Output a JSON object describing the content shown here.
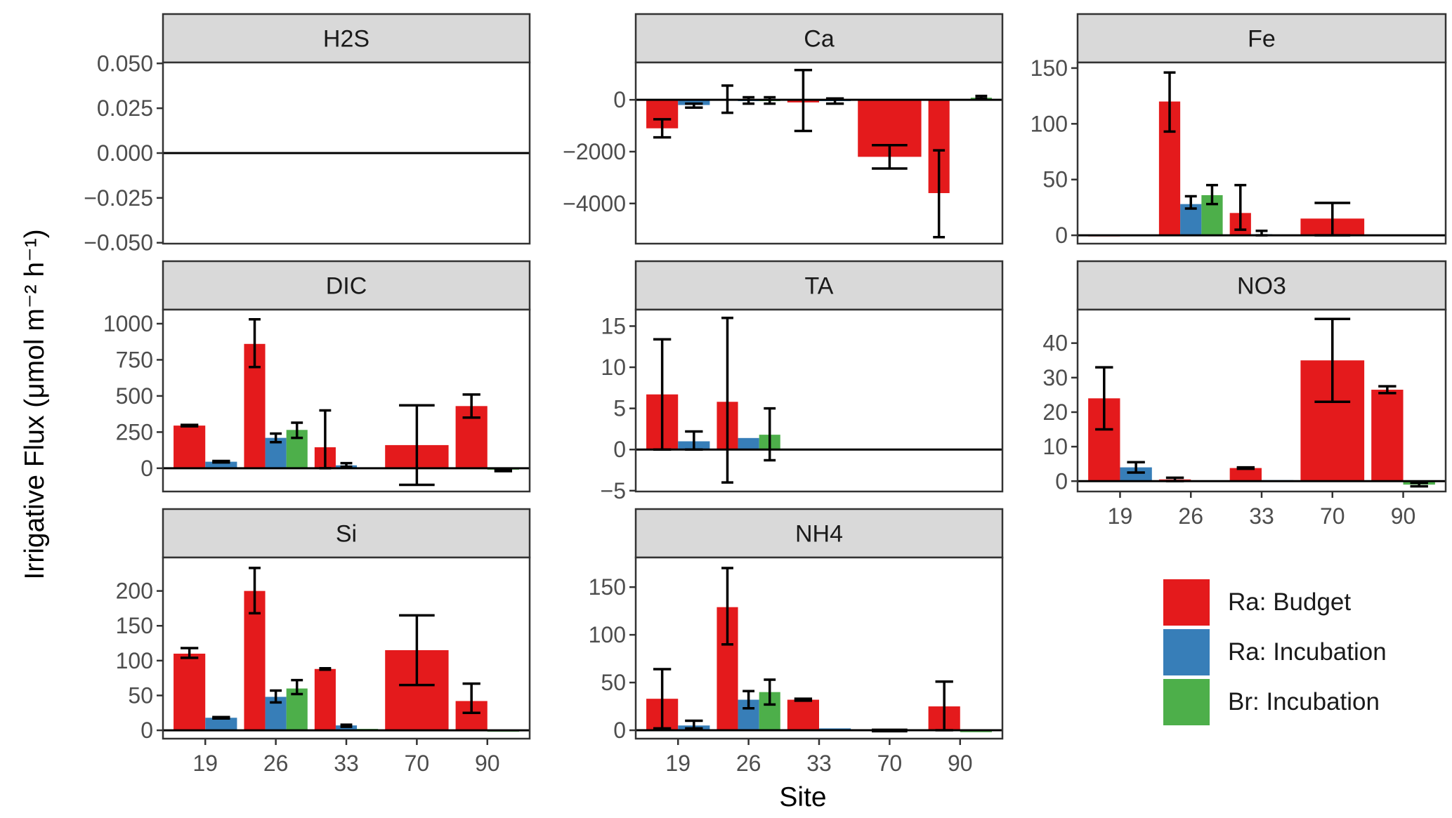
{
  "chart_data": {
    "type": "bar",
    "layout": "faceted 3x3 grid, free y scales",
    "ylabel": "Irrigative Flux (μmol m⁻² h⁻¹)",
    "xlabel": "Site",
    "categories": [
      "19",
      "26",
      "33",
      "70",
      "90"
    ],
    "legend": {
      "placement": "bottom-right",
      "entries": [
        {
          "name": "Ra: Budget",
          "color": "#E41A1C"
        },
        {
          "name": "Ra: Incubation",
          "color": "#377EB8"
        },
        {
          "name": "Br: Incubation",
          "color": "#4DAF4A"
        }
      ]
    },
    "panels": [
      {
        "title": "H2S",
        "ylim": [
          -0.0505,
          0.0505
        ],
        "ticks": [
          0.05,
          0.025,
          0,
          -0.025,
          -0.05
        ],
        "tick_labels": [
          "0.050",
          "0.025",
          "0.000",
          "−0.025",
          "−0.050"
        ],
        "show_x": false,
        "series": [
          [
            0,
            0,
            0,
            0,
            0
          ],
          [
            null,
            null,
            null,
            null,
            null
          ],
          [
            null,
            null,
            null,
            null,
            null
          ]
        ],
        "errors": [
          [
            null,
            null,
            null,
            null,
            null
          ],
          [
            null,
            null,
            null,
            null,
            null
          ],
          [
            null,
            null,
            null,
            null,
            null
          ]
        ]
      },
      {
        "title": "Ca",
        "ylim": [
          -5550,
          1440
        ],
        "ticks": [
          0,
          -2000,
          -4000
        ],
        "tick_labels": [
          "0",
          "−2000",
          "−4000"
        ],
        "show_x": false,
        "series": [
          [
            -1100,
            0,
            -100,
            -2200,
            -3600
          ],
          [
            -200,
            -50,
            -50,
            null,
            0
          ],
          [
            null,
            -50,
            null,
            null,
            80
          ]
        ],
        "errors": [
          [
            [
              -1450,
              -750
            ],
            [
              -500,
              550
            ],
            [
              -1200,
              1150
            ],
            [
              -2650,
              -1750
            ],
            [
              -5300,
              -1950
            ]
          ],
          [
            [
              -300,
              -150
            ],
            [
              -150,
              100
            ],
            [
              -150,
              50
            ],
            null,
            null
          ],
          [
            null,
            [
              -150,
              100
            ],
            null,
            null,
            [
              50,
              150
            ]
          ]
        ]
      },
      {
        "title": "Fe",
        "ylim": [
          -7.5,
          155
        ],
        "ticks": [
          0,
          50,
          100,
          150
        ],
        "tick_labels": [
          "0",
          "50",
          "100",
          "150"
        ],
        "show_x": false,
        "series": [
          [
            -1,
            120,
            20,
            15,
            0
          ],
          [
            0,
            28,
            1,
            null,
            0
          ],
          [
            null,
            36,
            0.5,
            null,
            null
          ]
        ],
        "errors": [
          [
            null,
            [
              93,
              146
            ],
            [
              5,
              45
            ],
            [
              0,
              29
            ],
            null
          ],
          [
            null,
            [
              24,
              35
            ],
            [
              0,
              4
            ],
            null,
            null
          ],
          [
            null,
            [
              28,
              45
            ],
            null,
            null,
            null
          ]
        ]
      },
      {
        "title": "DIC",
        "ylim": [
          -161,
          1097
        ],
        "ticks": [
          0,
          250,
          500,
          750,
          1000
        ],
        "tick_labels": [
          "0",
          "250",
          "500",
          "750",
          "1000"
        ],
        "show_x": false,
        "series": [
          [
            295,
            860,
            145,
            160,
            430
          ],
          [
            45,
            210,
            20,
            null,
            null
          ],
          [
            null,
            265,
            5,
            null,
            -10
          ]
        ],
        "errors": [
          [
            [
              290,
              300
            ],
            [
              700,
              1030
            ],
            [
              0,
              400
            ],
            [
              -115,
              435
            ],
            [
              350,
              510
            ]
          ],
          [
            [
              40,
              50
            ],
            [
              180,
              240
            ],
            [
              10,
              35
            ],
            null,
            null
          ],
          [
            null,
            [
              210,
              315
            ],
            null,
            null,
            [
              -20,
              -5
            ]
          ]
        ]
      },
      {
        "title": "TA",
        "ylim": [
          -5.1,
          17
        ],
        "ticks": [
          -5,
          0,
          5,
          10,
          15
        ],
        "tick_labels": [
          "−5",
          "0",
          "5",
          "10",
          "15"
        ],
        "show_x": false,
        "series": [
          [
            6.7,
            5.8,
            0,
            0,
            0
          ],
          [
            1,
            1.4,
            null,
            null,
            null
          ],
          [
            null,
            1.8,
            null,
            null,
            null
          ]
        ],
        "errors": [
          [
            [
              0,
              13.4
            ],
            [
              -4,
              16
            ],
            null,
            null,
            null
          ],
          [
            [
              0,
              2.2
            ],
            null,
            null,
            null,
            null
          ],
          [
            null,
            [
              -1.3,
              5
            ],
            null,
            null,
            null
          ]
        ]
      },
      {
        "title": "NO3",
        "ylim": [
          -3,
          49.7
        ],
        "ticks": [
          0,
          10,
          20,
          30,
          40
        ],
        "tick_labels": [
          "0",
          "10",
          "20",
          "30",
          "40"
        ],
        "show_x": true,
        "series": [
          [
            24,
            0.5,
            3.8,
            35,
            26.5
          ],
          [
            4,
            0.2,
            0.3,
            null,
            null
          ],
          [
            null,
            null,
            null,
            null,
            -1
          ]
        ],
        "errors": [
          [
            [
              15,
              33
            ],
            [
              0,
              1
            ],
            [
              3.6,
              4
            ],
            [
              23,
              47
            ],
            [
              25.5,
              27.5
            ]
          ],
          [
            [
              2.5,
              5.5
            ],
            null,
            null,
            null,
            null
          ],
          [
            null,
            null,
            null,
            null,
            [
              -1.5,
              -0.5
            ]
          ]
        ]
      },
      {
        "title": "Si",
        "ylim": [
          -12,
          248
        ],
        "ticks": [
          0,
          50,
          100,
          150,
          200
        ],
        "tick_labels": [
          "0",
          "50",
          "100",
          "150",
          "200"
        ],
        "show_x": true,
        "series": [
          [
            110,
            200,
            88,
            115,
            42
          ],
          [
            18,
            48,
            7,
            null,
            null
          ],
          [
            null,
            60,
            2,
            null,
            -2
          ]
        ],
        "errors": [
          [
            [
              104,
              118
            ],
            [
              168,
              233
            ],
            [
              87,
              89
            ],
            [
              65,
              165
            ],
            [
              25,
              67
            ]
          ],
          [
            [
              17,
              19
            ],
            [
              40,
              57
            ],
            [
              5,
              8
            ],
            null,
            null
          ],
          [
            null,
            [
              52,
              72
            ],
            null,
            null,
            null
          ]
        ]
      },
      {
        "title": "NH4",
        "ylim": [
          -8.8,
          181
        ],
        "ticks": [
          0,
          50,
          100,
          150
        ],
        "tick_labels": [
          "0",
          "50",
          "100",
          "150"
        ],
        "show_x": true,
        "series": [
          [
            33,
            129,
            32,
            0,
            25
          ],
          [
            5,
            32,
            2,
            null,
            null
          ],
          [
            null,
            40,
            null,
            null,
            -2
          ]
        ],
        "errors": [
          [
            [
              2,
              64
            ],
            [
              90,
              170
            ],
            [
              31,
              33
            ],
            [
              -1,
              0.5
            ],
            [
              0,
              51
            ]
          ],
          [
            [
              2,
              10
            ],
            [
              23,
              41
            ],
            null,
            null,
            null
          ],
          [
            null,
            [
              27,
              53
            ],
            null,
            null,
            null
          ]
        ]
      }
    ]
  }
}
